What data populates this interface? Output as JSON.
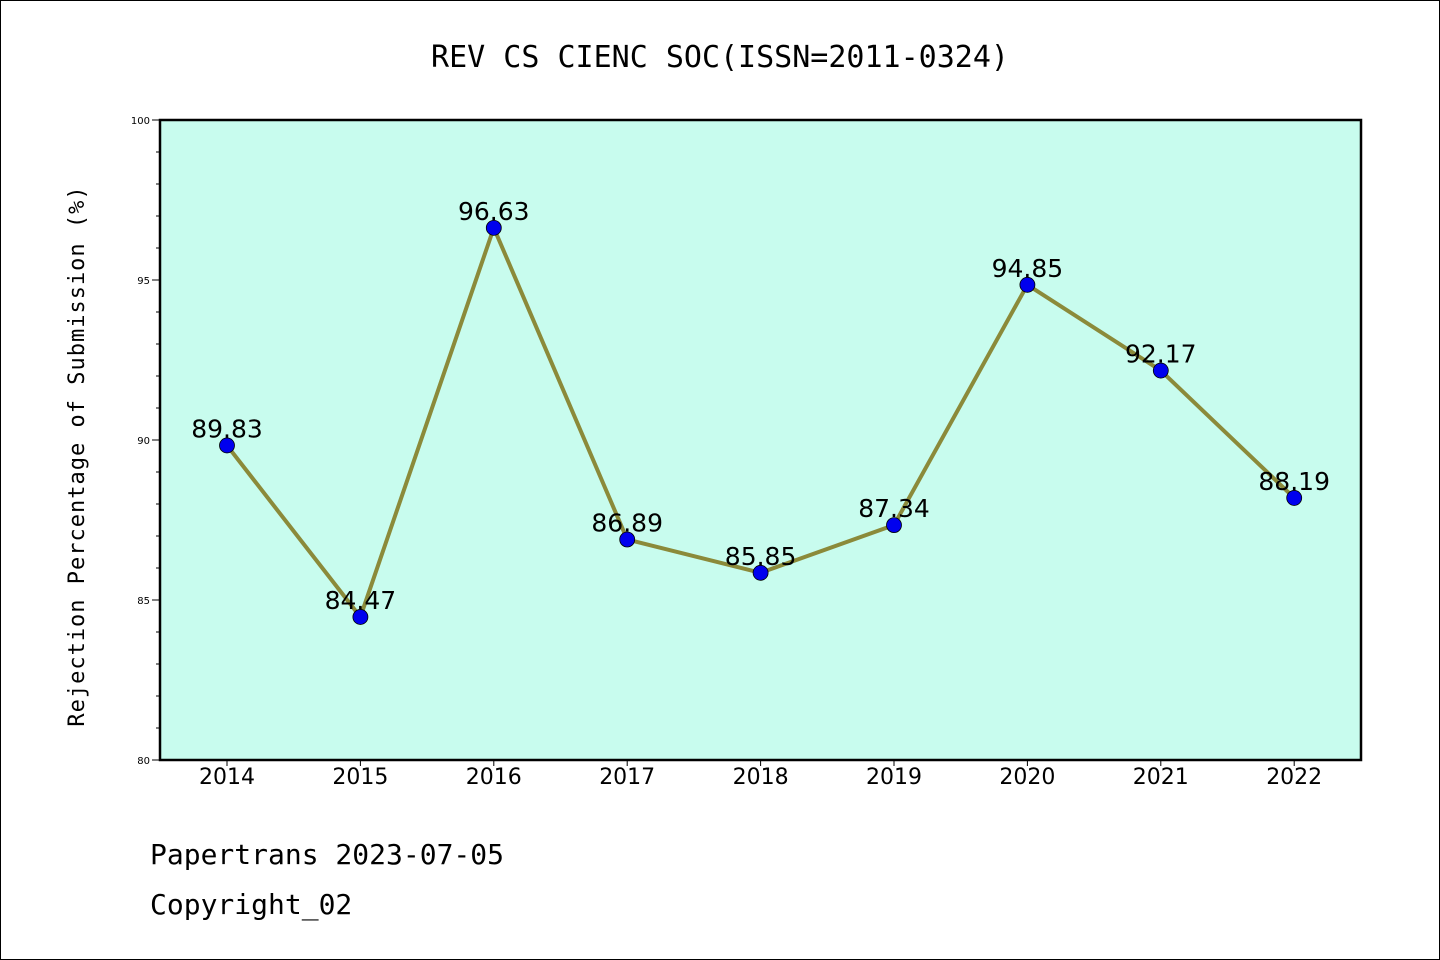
{
  "chart_data": {
    "type": "line",
    "title": "REV CS CIENC SOC(ISSN=2011-0324)",
    "ylabel": "Rejection Percentage of Submission (%)",
    "xlabel": "",
    "categories": [
      "2014",
      "2015",
      "2016",
      "2017",
      "2018",
      "2019",
      "2020",
      "2021",
      "2022"
    ],
    "values": [
      89.83,
      84.47,
      96.63,
      86.89,
      85.85,
      87.34,
      94.85,
      92.17,
      88.19
    ],
    "data_labels": [
      "89.83",
      "84.47",
      "96.63",
      "86.89",
      "85.85",
      "87.34",
      "94.85",
      "92.17",
      "88.19"
    ],
    "ylim": [
      80,
      100
    ],
    "yticks": [
      "80",
      "85",
      "90",
      "95",
      "100"
    ],
    "grid": false,
    "colors": {
      "plot_background": "#c8fcee",
      "line": "#8b8a3a",
      "marker": "#0000ee"
    }
  },
  "footer": {
    "line1": "Papertrans 2023-07-05",
    "line2": "Copyright_02"
  }
}
